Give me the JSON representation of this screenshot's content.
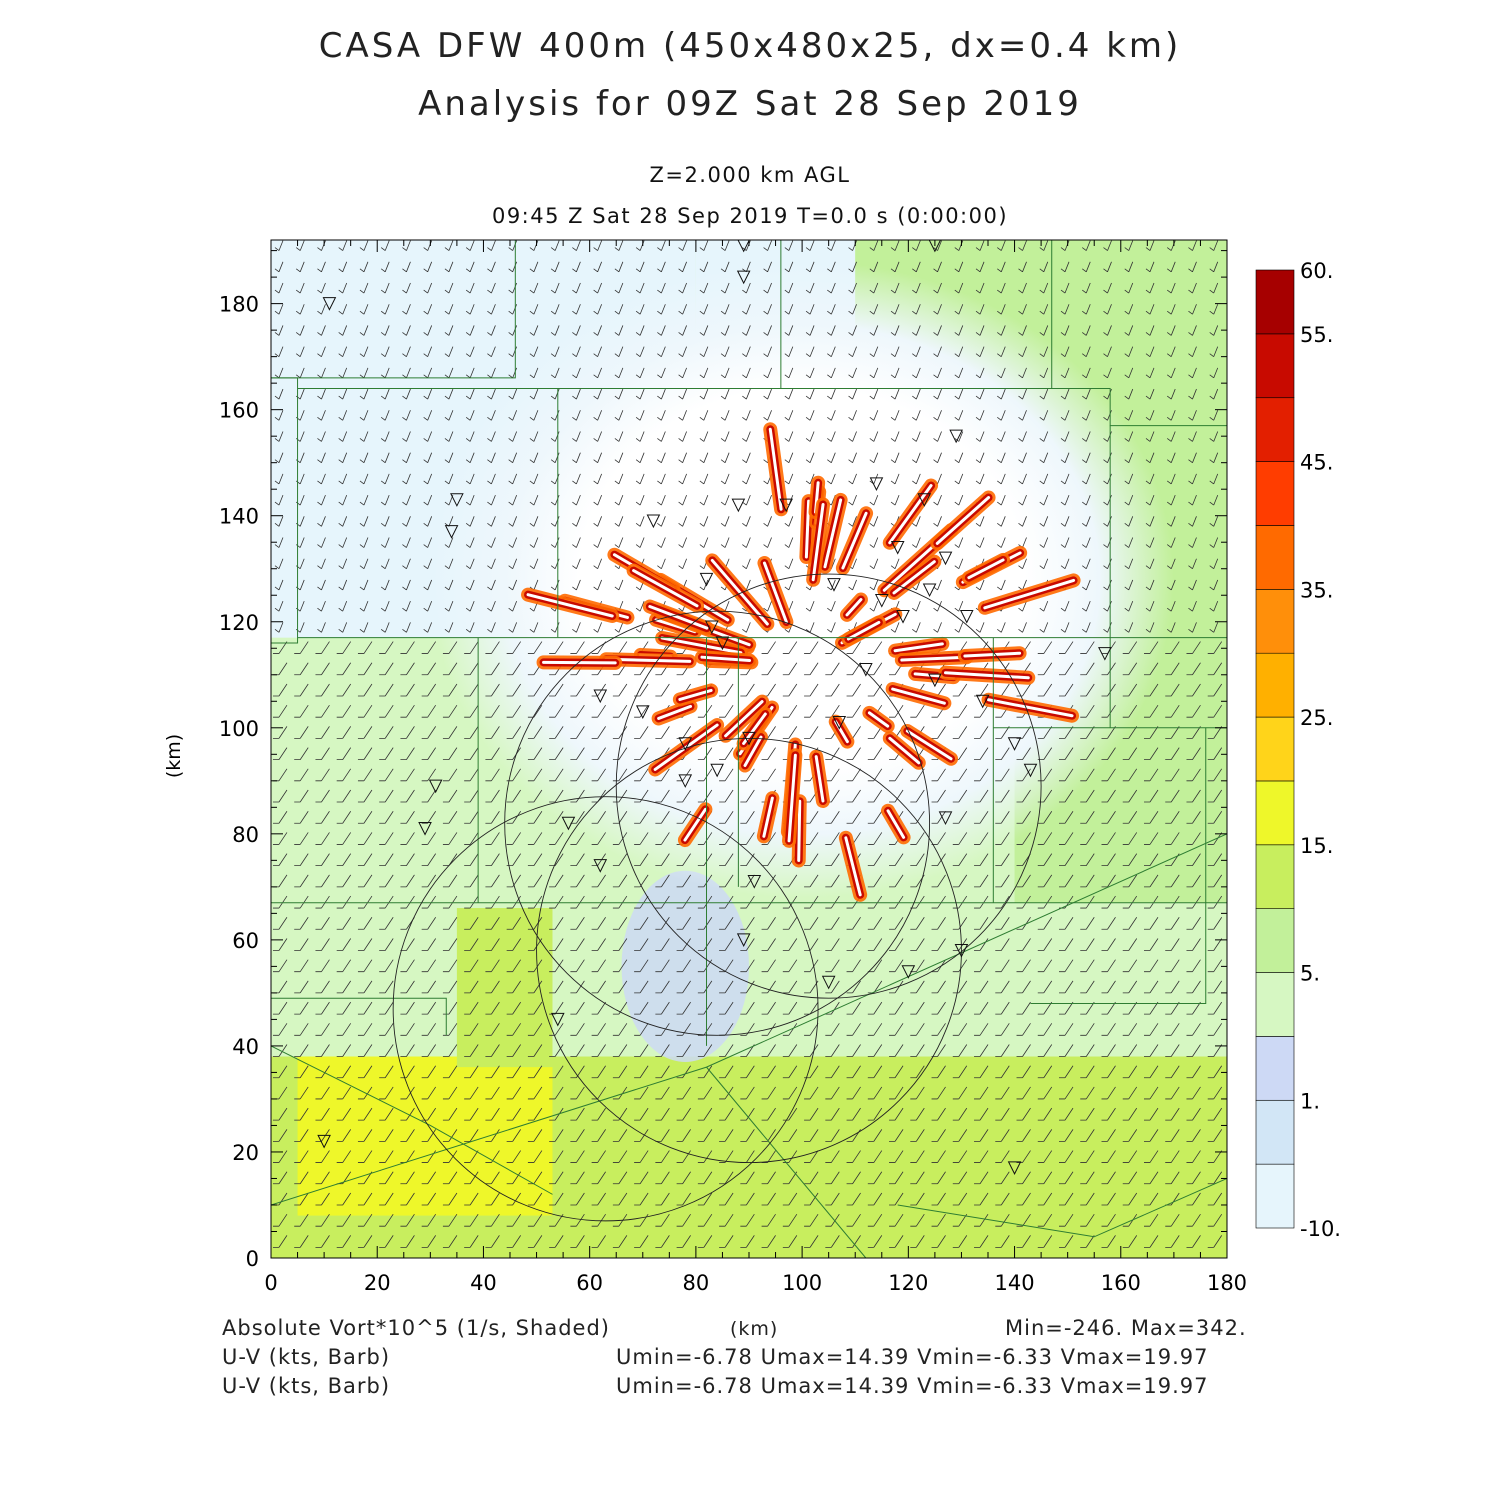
{
  "title_line1": "CASA DFW 400m (450x480x25, dx=0.4 km)",
  "title_line2": "Analysis for 09Z Sat 28 Sep 2019",
  "level_label": "Z=2.000 km AGL",
  "time_label": "09:45 Z Sat 28 Sep 2019    T=0.0 s (0:00:00)",
  "footer": {
    "field_label": "Absolute Vort*10^5 (1/s, Shaded)",
    "axis_unit": "(km)",
    "minmax": "Min=-246. Max=342.",
    "barb1_label": "U-V (kts, Barb)",
    "barb1_stats": "Umin=-6.78 Umax=14.39 Vmin=-6.33 Vmax=19.97",
    "barb2_label": "U-V (kts, Barb)",
    "barb2_stats": "Umin=-6.78 Umax=14.39 Vmin=-6.33 Vmax=19.97"
  },
  "colors": {
    "levels": [
      "#e6f5fc",
      "#d2e6f6",
      "#cdd9f5",
      "#d6f7c2",
      "#c2f09a",
      "#c8ee5e",
      "#eef72a",
      "#ffd41a",
      "#ffb000",
      "#ff8f0a",
      "#ff6a00",
      "#ff3d00",
      "#e31f00",
      "#c80a00",
      "#a60000"
    ]
  },
  "chart_data": {
    "type": "heatmap",
    "xlabel": "(km)",
    "ylabel": "(km)",
    "xlim": [
      0,
      180
    ],
    "ylim": [
      0,
      192
    ],
    "x_ticks": [
      0,
      20,
      40,
      60,
      80,
      100,
      120,
      140,
      160,
      180
    ],
    "y_ticks": [
      0,
      20,
      40,
      60,
      80,
      100,
      120,
      140,
      160,
      180
    ],
    "colorbar": {
      "labels": [
        {
          "text": "60.",
          "value": 60
        },
        {
          "text": "55.",
          "value": 55
        },
        {
          "text": "45.",
          "value": 45
        },
        {
          "text": "35.",
          "value": 35
        },
        {
          "text": "25.",
          "value": 25
        },
        {
          "text": "15.",
          "value": 15
        },
        {
          "text": "5.",
          "value": 5
        },
        {
          "text": "1.",
          "value": 1
        },
        {
          "text": "-10.",
          "value": -10
        }
      ],
      "bounds": [
        -10,
        -5,
        0,
        1,
        5,
        10,
        15,
        20,
        25,
        30,
        35,
        40,
        45,
        50,
        55,
        60
      ]
    },
    "field_min": -246,
    "field_max": 342,
    "radar_circles": [
      {
        "cx": 105,
        "cy": 89,
        "r": 40
      },
      {
        "cx": 90,
        "cy": 58,
        "r": 40
      },
      {
        "cx": 63,
        "cy": 47,
        "r": 40
      },
      {
        "cx": 84,
        "cy": 82,
        "r": 40
      }
    ],
    "radar_sites": [
      [
        89,
        191
      ],
      [
        89,
        185
      ],
      [
        125,
        191
      ],
      [
        11,
        180
      ],
      [
        35,
        143
      ],
      [
        34,
        137
      ],
      [
        129,
        155
      ],
      [
        114,
        146
      ],
      [
        123,
        143
      ],
      [
        97,
        142
      ],
      [
        88,
        142
      ],
      [
        72,
        139
      ],
      [
        118,
        134
      ],
      [
        127,
        132
      ],
      [
        82,
        128
      ],
      [
        106,
        127
      ],
      [
        115,
        124
      ],
      [
        124,
        126
      ],
      [
        83,
        119
      ],
      [
        119,
        121
      ],
      [
        131,
        121
      ],
      [
        85,
        116
      ],
      [
        157,
        114
      ],
      [
        112,
        111
      ],
      [
        125,
        109
      ],
      [
        62,
        106
      ],
      [
        134,
        105
      ],
      [
        70,
        103
      ],
      [
        107,
        101
      ],
      [
        90,
        98
      ],
      [
        78,
        97
      ],
      [
        84,
        92
      ],
      [
        140,
        97
      ],
      [
        143,
        92
      ],
      [
        31,
        89
      ],
      [
        29,
        81
      ],
      [
        56,
        82
      ],
      [
        78,
        90
      ],
      [
        62,
        74
      ],
      [
        91,
        71
      ],
      [
        127,
        83
      ],
      [
        89,
        60
      ],
      [
        105,
        52
      ],
      [
        120,
        54
      ],
      [
        130,
        58
      ],
      [
        54,
        45
      ],
      [
        10,
        22
      ],
      [
        140,
        17
      ]
    ],
    "counties": [
      [
        [
          0,
          166
        ],
        [
          46,
          166
        ],
        [
          46,
          192
        ]
      ],
      [
        [
          0,
          166
        ],
        [
          5,
          166
        ],
        [
          5,
          116
        ],
        [
          0,
          116
        ]
      ],
      [
        [
          5,
          164
        ],
        [
          54,
          164
        ],
        [
          54,
          117
        ]
      ],
      [
        [
          54,
          164
        ],
        [
          96,
          164
        ],
        [
          96,
          192
        ]
      ],
      [
        [
          96,
          164
        ],
        [
          147,
          164
        ],
        [
          147,
          192
        ]
      ],
      [
        [
          147,
          164
        ],
        [
          158,
          164
        ],
        [
          158,
          157
        ],
        [
          180,
          157
        ]
      ],
      [
        [
          54,
          117
        ],
        [
          5,
          117
        ]
      ],
      [
        [
          54,
          117
        ],
        [
          180,
          117
        ]
      ],
      [
        [
          0,
          67
        ],
        [
          180,
          67
        ]
      ],
      [
        [
          39,
          117
        ],
        [
          39,
          67
        ]
      ],
      [
        [
          82,
          117
        ],
        [
          82,
          40
        ]
      ],
      [
        [
          88,
          117
        ],
        [
          88,
          70
        ]
      ],
      [
        [
          136,
          117
        ],
        [
          136,
          67
        ]
      ],
      [
        [
          158,
          157
        ],
        [
          158,
          100
        ]
      ],
      [
        [
          136,
          100
        ],
        [
          158,
          100
        ],
        [
          180,
          100
        ]
      ],
      [
        [
          176,
          100
        ],
        [
          176,
          48
        ],
        [
          143,
          48
        ]
      ],
      [
        [
          0,
          49
        ],
        [
          20,
          49
        ],
        [
          33,
          49
        ],
        [
          33,
          42
        ]
      ],
      [
        [
          0,
          40
        ],
        [
          30,
          25
        ],
        [
          53,
          12
        ]
      ],
      [
        [
          0,
          10
        ],
        [
          82,
          36
        ],
        [
          180,
          80
        ]
      ],
      [
        [
          82,
          36
        ],
        [
          112,
          0
        ]
      ],
      [
        [
          118,
          10
        ],
        [
          155,
          4
        ],
        [
          180,
          15
        ]
      ]
    ]
  }
}
